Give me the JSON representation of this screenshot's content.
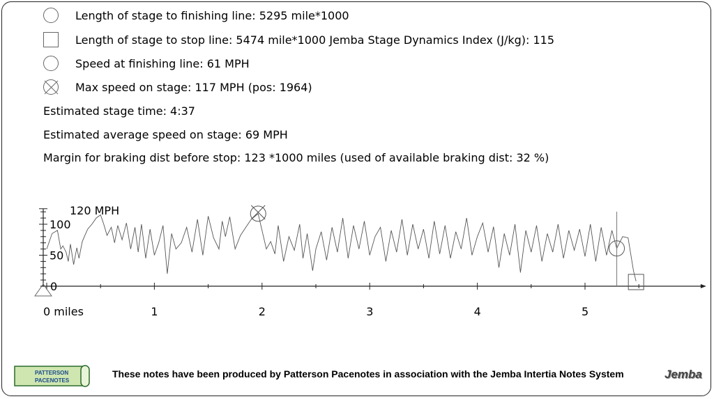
{
  "summary": {
    "finish_length": "Length of stage to finishing line: 5295 mile*1000",
    "stop_length": "Length of stage to stop line: 5474 mile*1000 Jemba Stage Dynamics Index (J/kg): 115",
    "finish_speed": "Speed at finishing line: 61 MPH",
    "max_speed": "Max speed on stage: 117 MPH (pos: 1964)",
    "stage_time": "Estimated stage time: 4:37",
    "avg_speed": "Estimated average speed on stage: 69 MPH",
    "braking_margin": "Margin for braking dist before stop: 123 *1000 miles (used of available braking dist: 32 %)"
  },
  "footer": {
    "credit": "These notes have been produced by Patterson Pacenotes in association with the Jemba Intertia Notes System",
    "logo_left_top": "PATTERSON",
    "logo_left_bottom": "PACENOTES",
    "logo_right": "Jemba"
  },
  "colors": {
    "line": "#555555",
    "axis": "#222222"
  },
  "chart_data": {
    "type": "line",
    "y_axis_title": "120 MPH",
    "yticks": [
      0,
      50,
      100
    ],
    "ylim": [
      0,
      125
    ],
    "xticks": [
      0,
      1,
      2,
      3,
      4,
      5
    ],
    "xtick_labels": [
      "0 miles",
      "1",
      "2",
      "3",
      "4",
      "5"
    ],
    "xlim": [
      0,
      6.1
    ],
    "finish_position": 5.295,
    "stop_position": 5.474,
    "max_speed_point": [
      1.964,
      117
    ],
    "finish_speed_point": [
      5.295,
      61
    ],
    "series": [
      {
        "x": [
          0,
          0.05,
          0.1,
          0.13,
          0.15,
          0.18,
          0.2,
          0.22,
          0.25,
          0.28,
          0.3,
          0.33,
          0.35,
          0.38,
          0.42,
          0.46,
          0.5,
          0.53,
          0.56,
          0.6,
          0.63,
          0.66,
          0.7,
          0.74,
          0.78,
          0.82,
          0.85,
          0.88,
          0.92,
          0.96,
          1.0,
          1.04,
          1.08,
          1.12,
          1.16,
          1.2,
          1.25,
          1.3,
          1.35,
          1.4,
          1.45,
          1.5,
          1.55,
          1.6,
          1.63,
          1.66,
          1.7,
          1.75,
          1.8,
          1.85,
          1.9,
          1.964,
          2.0,
          2.04,
          2.08,
          2.12,
          2.15,
          2.2,
          2.25,
          2.3,
          2.35,
          2.38,
          2.42,
          2.47,
          2.5,
          2.55,
          2.6,
          2.65,
          2.7,
          2.75,
          2.8,
          2.85,
          2.9,
          2.95,
          3.0,
          3.05,
          3.1,
          3.15,
          3.2,
          3.25,
          3.3,
          3.35,
          3.4,
          3.45,
          3.5,
          3.55,
          3.6,
          3.65,
          3.7,
          3.75,
          3.8,
          3.85,
          3.9,
          3.95,
          4.0,
          4.05,
          4.1,
          4.15,
          4.2,
          4.25,
          4.3,
          4.35,
          4.4,
          4.45,
          4.5,
          4.55,
          4.6,
          4.65,
          4.7,
          4.75,
          4.8,
          4.85,
          4.9,
          4.95,
          5.0,
          5.05,
          5.1,
          5.15,
          5.2,
          5.25,
          5.295,
          5.35,
          5.4,
          5.45,
          5.474
        ],
        "y": [
          60,
          85,
          90,
          60,
          65,
          55,
          40,
          68,
          35,
          62,
          45,
          72,
          80,
          92,
          100,
          110,
          115,
          100,
          82,
          95,
          70,
          98,
          75,
          102,
          60,
          95,
          55,
          100,
          45,
          92,
          50,
          70,
          98,
          20,
          85,
          60,
          70,
          95,
          55,
          108,
          50,
          113,
          78,
          60,
          105,
          80,
          112,
          60,
          82,
          95,
          108,
          117,
          90,
          60,
          72,
          52,
          98,
          40,
          80,
          58,
          100,
          45,
          85,
          25,
          60,
          88,
          42,
          95,
          55,
          110,
          45,
          98,
          60,
          105,
          50,
          80,
          95,
          40,
          90,
          55,
          108,
          50,
          100,
          60,
          92,
          45,
          105,
          52,
          98,
          45,
          88,
          60,
          110,
          50,
          80,
          102,
          55,
          96,
          30,
          85,
          50,
          100,
          22,
          90,
          55,
          98,
          40,
          85,
          55,
          100,
          45,
          90,
          58,
          92,
          48,
          100,
          40,
          95,
          50,
          90,
          61,
          80,
          78,
          25,
          8
        ]
      }
    ]
  }
}
